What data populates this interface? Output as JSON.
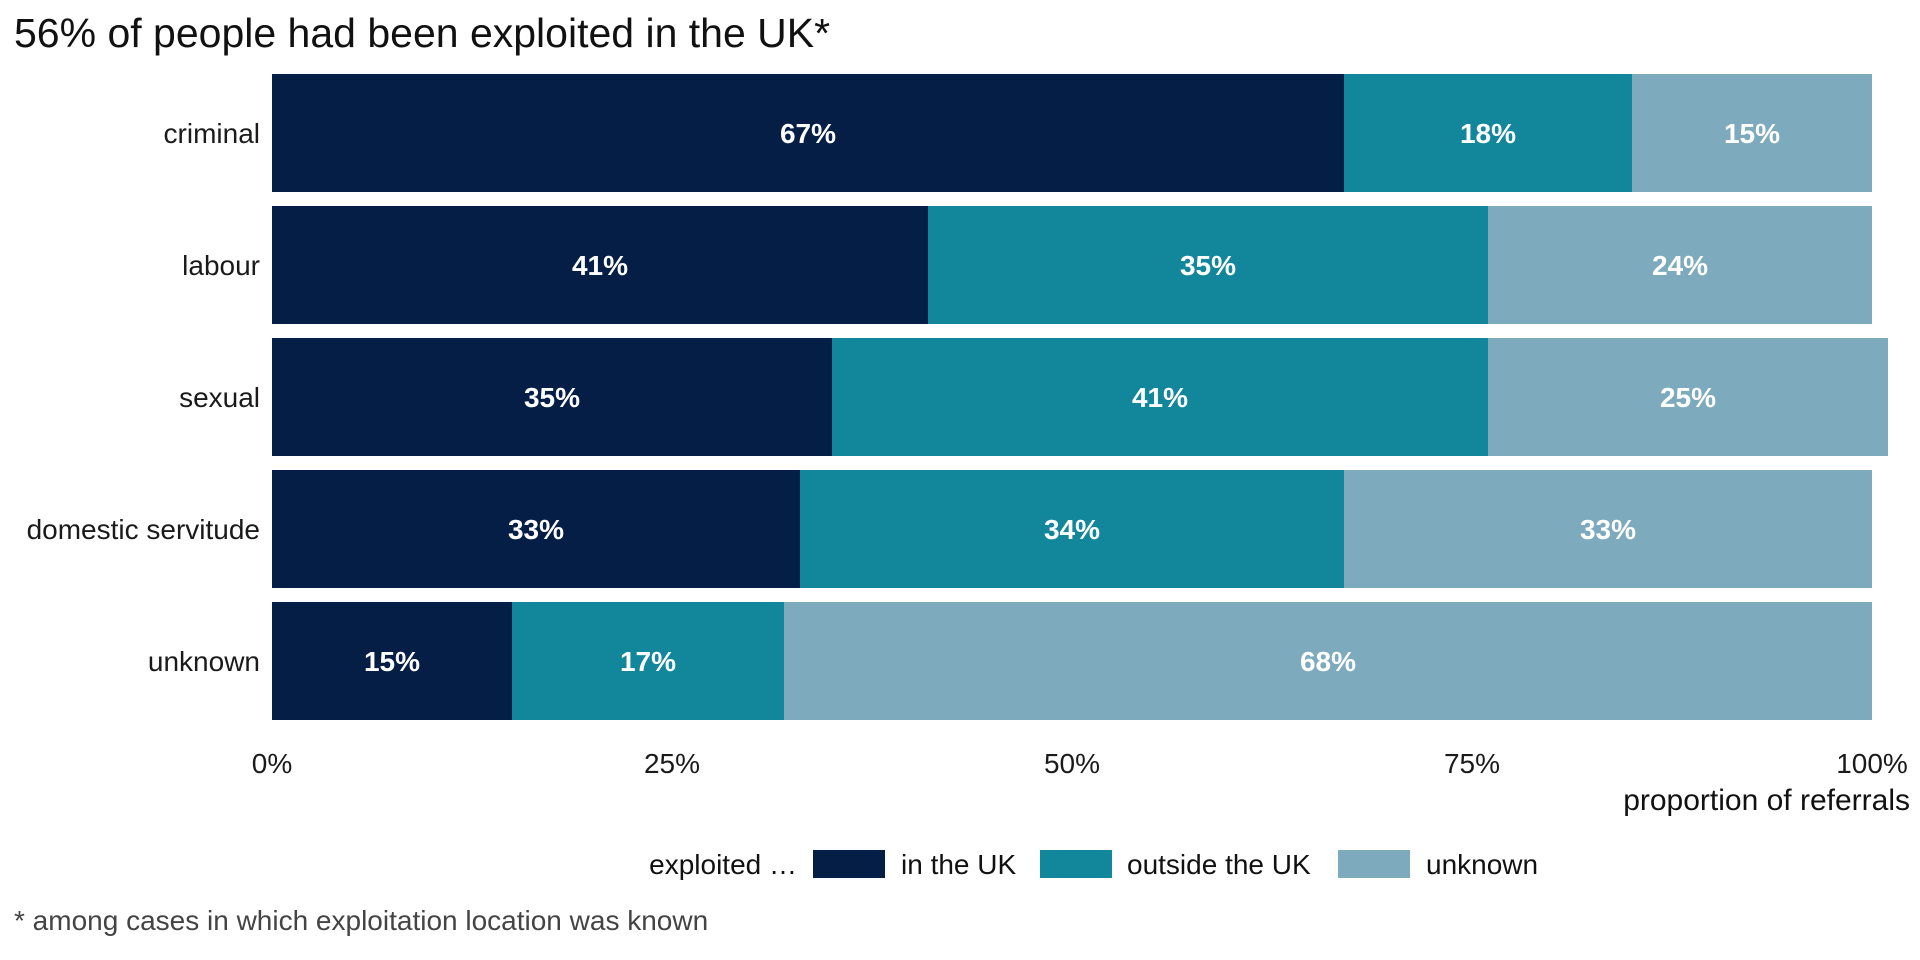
{
  "title": "56% of people had been exploited in the UK*",
  "footnote": "* among cases in which exploitation location was known",
  "chart_data": {
    "type": "bar",
    "orientation": "horizontal",
    "stacked": true,
    "title": "56% of people had been exploited in the UK*",
    "xlabel": "proportion of referrals",
    "ylabel": "",
    "xlim": [
      0,
      100
    ],
    "x_ticks": [
      "0%",
      "25%",
      "50%",
      "75%",
      "100%"
    ],
    "categories": [
      "criminal",
      "labour",
      "sexual",
      "domestic servitude",
      "unknown"
    ],
    "series": [
      {
        "name": "in the UK",
        "color": "#041E46",
        "values": [
          67,
          41,
          35,
          33,
          15
        ]
      },
      {
        "name": "outside the UK",
        "color": "#12869A",
        "values": [
          18,
          35,
          41,
          34,
          17
        ]
      },
      {
        "name": "unknown",
        "color": "#7EAABD",
        "values": [
          15,
          24,
          25,
          33,
          68
        ]
      }
    ],
    "bar_value_labels": true,
    "grid": false,
    "legend_title": "exploited …",
    "legend_position": "bottom"
  }
}
